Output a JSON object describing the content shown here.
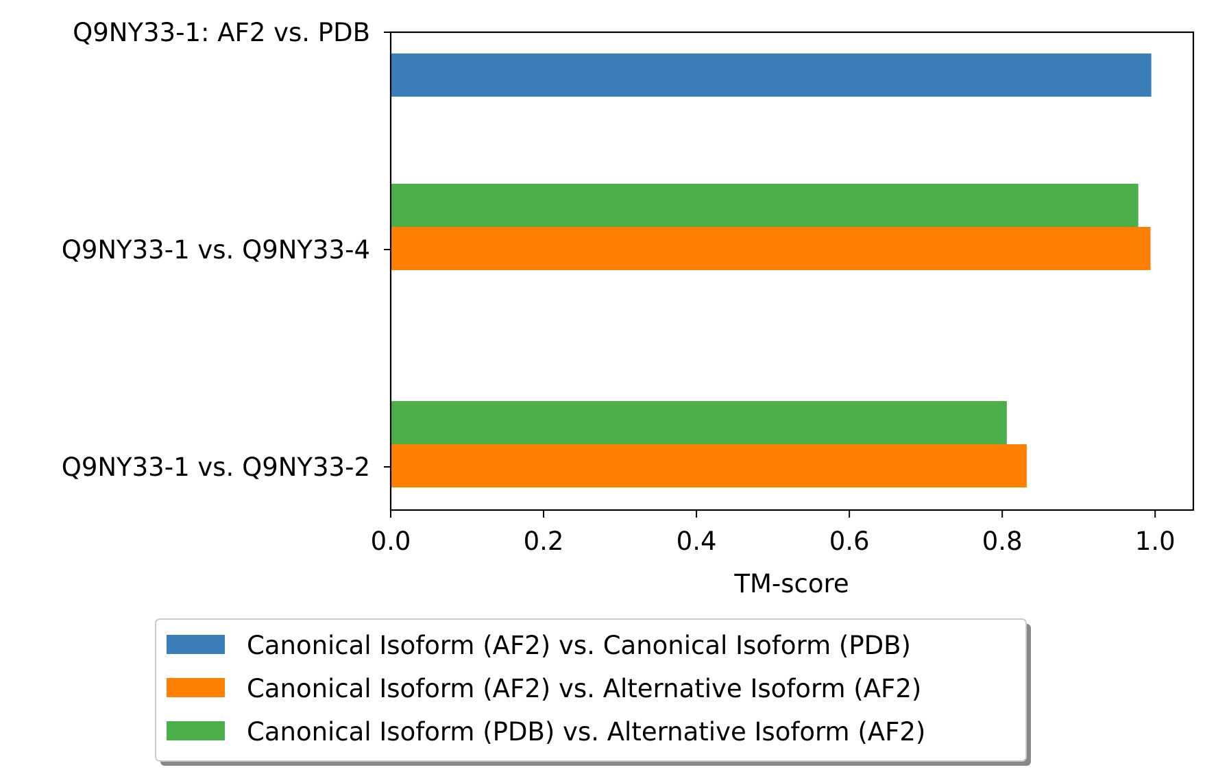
{
  "chart_data": {
    "type": "bar",
    "orientation": "horizontal",
    "categories": [
      "Q9NY33-1: AF2 vs. PDB",
      "Q9NY33-1 vs. Q9NY33-4",
      "Q9NY33-1 vs. Q9NY33-2"
    ],
    "series": [
      {
        "name": "Canonical Isoform (AF2) vs. Canonical Isoform (PDB)",
        "color": "#3a7fba",
        "values": [
          0.995,
          null,
          null
        ]
      },
      {
        "name": "Canonical Isoform (AF2) vs. Alternative Isoform (AF2)",
        "color": "#ff7f00",
        "values": [
          null,
          0.994,
          0.832
        ]
      },
      {
        "name": "Canonical Isoform (PDB) vs. Alternative Isoform (AF2)",
        "color": "#4daf4a",
        "values": [
          null,
          0.978,
          0.806
        ]
      }
    ],
    "xlabel": "TM-score",
    "ylabel": "",
    "xlim": [
      0.0,
      1.05
    ],
    "xticks": [
      0.0,
      0.2,
      0.4,
      0.6,
      0.8,
      1.0
    ],
    "xtick_labels": [
      "0.0",
      "0.2",
      "0.4",
      "0.6",
      "0.8",
      "1.0"
    ],
    "grid": false,
    "legend_position": "bottom-center"
  }
}
